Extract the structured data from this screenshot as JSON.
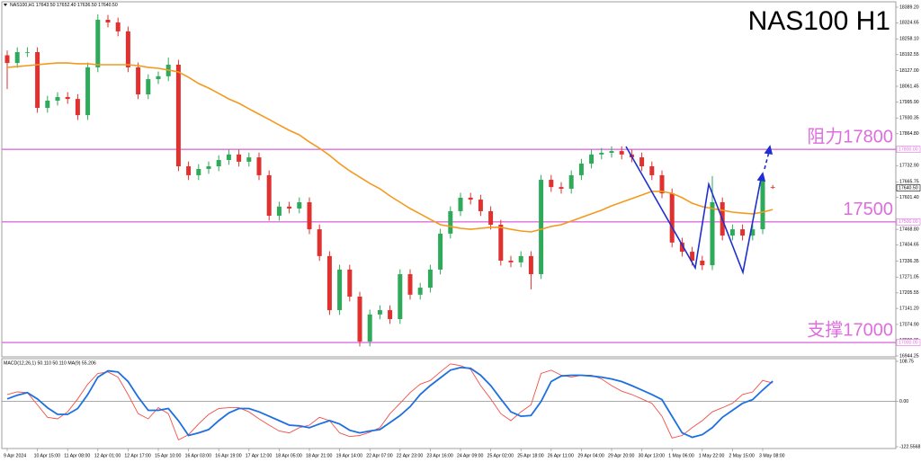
{
  "chart_data": {
    "type": "candlestick",
    "title": "NAS100 H1",
    "header": "NAS100,H1  17643.50 17652.40 17636.50 17640.50",
    "categories": [
      "9 Apr 2024",
      null,
      null,
      "10 Apr 15:00",
      null,
      null,
      "11 Apr 08:00",
      null,
      null,
      "12 Apr 01:00",
      null,
      null,
      "12 Apr 17:00",
      null,
      null,
      "15 Apr 10:00",
      null,
      null,
      "16 Apr 03:00",
      null,
      null,
      "16 Apr 19:00",
      null,
      null,
      "17 Apr 12:00",
      null,
      null,
      "18 Apr 05:00",
      null,
      null,
      "18 Apr 21:00",
      null,
      null,
      "19 Apr 14:00",
      null,
      null,
      "22 Apr 07:00",
      null,
      null,
      "22 Apr 23:00",
      null,
      null,
      "23 Apr 16:00",
      null,
      null,
      "24 Apr 09:00",
      null,
      null,
      "25 Apr 02:00",
      null,
      null,
      "25 Apr 18:00",
      null,
      null,
      "26 Apr 11:00",
      null,
      null,
      "29 Apr 04:00",
      null,
      null,
      "29 Apr 20:00",
      null,
      null,
      "30 Apr 13:00",
      null,
      null,
      "1 May 06:00",
      null,
      null,
      "1 May 22:00",
      null,
      null,
      "2 May 15:00",
      null,
      null,
      "3 May 08:00",
      null
    ],
    "open": [
      18190,
      18158,
      18203,
      18203,
      17972,
      18002,
      18017,
      18009,
      17942,
      18140,
      18337,
      18326,
      18289,
      18140,
      18028,
      18091,
      18103,
      18151,
      17730,
      17693,
      17719,
      17730,
      17756,
      17779,
      17749,
      17767,
      17693,
      17525,
      17563,
      17555,
      17581,
      17469,
      17358,
      17134,
      17302,
      17190,
      17004,
      17116,
      17134,
      17097,
      17283,
      17198,
      17227,
      17302,
      17451,
      17544,
      17600,
      17592,
      17544,
      17488,
      17339,
      17332,
      17358,
      17283,
      17674,
      17644,
      17637,
      17693,
      17741,
      17779,
      17786,
      17793,
      17779,
      17767,
      17730,
      17693,
      17618,
      17414,
      17376,
      17339,
      17320,
      17581,
      17443,
      17469,
      17443,
      17469,
      17643.5
    ],
    "high": [
      18210,
      18223,
      18223,
      18223,
      18022,
      18037,
      18037,
      18029,
      18160,
      18360,
      18357,
      18346,
      18309,
      18160,
      18111,
      18123,
      18180,
      18171,
      17750,
      17739,
      17750,
      17776,
      17799,
      17799,
      17787,
      17787,
      17713,
      17583,
      17583,
      17601,
      17601,
      17489,
      17378,
      17322,
      17322,
      17210,
      17136,
      17154,
      17154,
      17303,
      17303,
      17247,
      17322,
      17471,
      17564,
      17620,
      17620,
      17612,
      17564,
      17508,
      17359,
      17378,
      17378,
      17694,
      17694,
      17664,
      17713,
      17761,
      17799,
      17806,
      17813,
      17813,
      17799,
      17787,
      17750,
      17713,
      17638,
      17434,
      17396,
      17359,
      17690,
      17601,
      17489,
      17489,
      17489,
      17694,
      17652.4
    ],
    "low": [
      18050,
      18138,
      18183,
      17952,
      17952,
      17982,
      17989,
      17922,
      17922,
      18120,
      18306,
      18269,
      18120,
      18008,
      18008,
      18071,
      18083,
      17710,
      17673,
      17673,
      17699,
      17710,
      17736,
      17729,
      17729,
      17673,
      17505,
      17505,
      17535,
      17535,
      17449,
      17338,
      17114,
      17114,
      17170,
      16984,
      16984,
      17096,
      17077,
      17077,
      17178,
      17178,
      17207,
      17282,
      17431,
      17524,
      17572,
      17524,
      17468,
      17319,
      17312,
      17312,
      17220,
      17263,
      17624,
      17617,
      17617,
      17673,
      17721,
      17759,
      17766,
      17759,
      17747,
      17710,
      17673,
      17598,
      17394,
      17356,
      17319,
      17300,
      17300,
      17423,
      17423,
      17423,
      17423,
      17449,
      17636.5
    ],
    "close": [
      18158,
      18203,
      18203,
      17972,
      18002,
      18017,
      18009,
      17942,
      18140,
      18337,
      18326,
      18289,
      18140,
      18028,
      18091,
      18103,
      18151,
      17730,
      17693,
      17719,
      17730,
      17756,
      17779,
      17749,
      17767,
      17693,
      17525,
      17563,
      17555,
      17581,
      17469,
      17358,
      17134,
      17302,
      17190,
      17004,
      17116,
      17134,
      17097,
      17283,
      17198,
      17227,
      17302,
      17451,
      17544,
      17600,
      17592,
      17544,
      17488,
      17339,
      17332,
      17358,
      17283,
      17674,
      17644,
      17637,
      17693,
      17741,
      17779,
      17786,
      17793,
      17779,
      17767,
      17730,
      17693,
      17618,
      17414,
      17376,
      17339,
      17320,
      17581,
      17443,
      17469,
      17443,
      17469,
      17674,
      17640.5
    ],
    "last_label": "17640.50",
    "up_color": "#2eaa5a",
    "down_color": "#e0312f",
    "ma": {
      "color": "#f39a1e",
      "values": [
        18140,
        18143,
        18147,
        18151,
        18155,
        18158,
        18158,
        18155,
        18155,
        18151,
        18151,
        18151,
        18151,
        18147,
        18140,
        18136,
        18129,
        18121,
        18099,
        18073,
        18054,
        18032,
        18009,
        17991,
        17968,
        17946,
        17924,
        17901,
        17879,
        17860,
        17831,
        17805,
        17775,
        17741,
        17711,
        17685,
        17659,
        17637,
        17607,
        17581,
        17555,
        17533,
        17510,
        17488,
        17481,
        17473,
        17469,
        17473,
        17477,
        17477,
        17469,
        17462,
        17458,
        17469,
        17481,
        17488,
        17503,
        17518,
        17533,
        17548,
        17566,
        17581,
        17596,
        17611,
        17626,
        17626,
        17618,
        17600,
        17577,
        17563,
        17555,
        17548,
        17540,
        17536,
        17533,
        17540,
        17551
      ]
    },
    "levels": [
      {
        "value": 17800,
        "label": "阻力17800",
        "axis_label": "17800.00"
      },
      {
        "value": 17500,
        "label": "17500",
        "axis_label": "17500.00"
      },
      {
        "value": 17000,
        "label": "支撑17000",
        "axis_label": "17000.00"
      }
    ],
    "level_color": "#de6ede",
    "ylim": [
      16944.25,
      18389.2
    ],
    "yticks": [
      {
        "value": 18389.2,
        "label": "18389.20"
      },
      {
        "value": 18324.65,
        "label": "18324.65"
      },
      {
        "value": 18258.1,
        "label": "18258.10"
      },
      {
        "value": 18192.55,
        "label": "18192.55"
      },
      {
        "value": 18127,
        "label": "18127.00"
      },
      {
        "value": 18061.45,
        "label": "18061.45"
      },
      {
        "value": 17995.9,
        "label": "17995.90"
      },
      {
        "value": 17930.35,
        "label": "17930.35"
      },
      {
        "value": 17864.8,
        "label": "17864.80"
      },
      {
        "value": 17732.9,
        "label": "17732.90"
      },
      {
        "value": 17665.75,
        "label": "17665.75"
      },
      {
        "value": 17601.4,
        "label": "17601.40"
      },
      {
        "value": 17468.8,
        "label": "17468.80"
      },
      {
        "value": 17404.65,
        "label": "17404.65"
      },
      {
        "value": 17336.35,
        "label": "17336.35"
      },
      {
        "value": 17271.05,
        "label": "17271.05"
      },
      {
        "value": 17205.55,
        "label": "17205.55"
      },
      {
        "value": 17141.2,
        "label": "17141.20"
      },
      {
        "value": 17074.9,
        "label": "17074.90"
      },
      {
        "value": 17009.35,
        "label": "17009.35"
      },
      {
        "value": 16944.25,
        "label": "16944.25"
      }
    ],
    "macd": {
      "label": "MACD(12,26,1) 50.110 50.110 MA(9) 55.206",
      "ylim": [
        -122.5568,
        108.75
      ],
      "yticks": [
        108.75,
        {
          "value": 0,
          "label": "0.00"
        },
        -122.5568
      ],
      "series": [
        {
          "color": "#f0504a",
          "values": [
            19,
            26,
            24,
            -9,
            -43,
            -47,
            -28,
            7,
            47,
            76,
            80,
            66,
            19,
            -33,
            -47,
            -17,
            -33,
            -104,
            -90,
            -61,
            -35,
            -19,
            -17,
            -17,
            -28,
            -47,
            -64,
            -80,
            -85,
            -71,
            -64,
            -43,
            -52,
            -85,
            -95,
            -92,
            -83,
            -71,
            -33,
            -5,
            24,
            47,
            57,
            80,
            102,
            97,
            87,
            43,
            7,
            -33,
            -52,
            -28,
            -9,
            76,
            85,
            71,
            66,
            71,
            71,
            61,
            43,
            28,
            19,
            7,
            -5,
            -40,
            -99,
            -92,
            -71,
            -52,
            -28,
            -17,
            -5,
            19,
            26,
            57,
            50.11
          ]
        },
        {
          "color": "#1e6fe0",
          "values": [
            7,
            17,
            24,
            7,
            -17,
            -35,
            -35,
            -19,
            19,
            66,
            83,
            80,
            54,
            12,
            -24,
            -24,
            -19,
            -52,
            -92,
            -85,
            -76,
            -52,
            -31,
            -19,
            -19,
            -28,
            -40,
            -52,
            -64,
            -66,
            -71,
            -61,
            -52,
            -61,
            -78,
            -85,
            -80,
            -76,
            -57,
            -38,
            -14,
            19,
            43,
            64,
            85,
            92,
            90,
            71,
            43,
            7,
            -28,
            -40,
            -38,
            0,
            54,
            69,
            71,
            71,
            69,
            66,
            61,
            54,
            43,
            31,
            19,
            5,
            -40,
            -85,
            -97,
            -90,
            -71,
            -43,
            -24,
            -5,
            5,
            31,
            55.206
          ]
        }
      ]
    }
  }
}
